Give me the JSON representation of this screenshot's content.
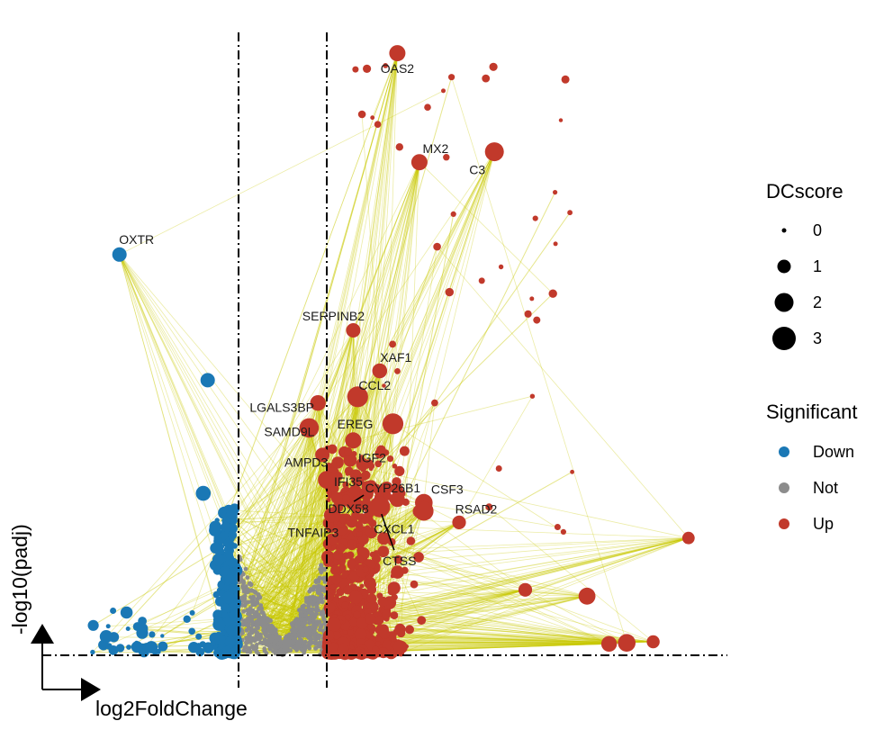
{
  "chart_data": {
    "type": "scatter",
    "subtype": "volcano",
    "xlabel": "log2FoldChange",
    "ylabel": "-log10(padj)",
    "xlim": [
      -6,
      10
    ],
    "ylim": [
      0,
      60
    ],
    "fc_threshold": [
      -1,
      1
    ],
    "padj_threshold": 1.3,
    "colors": {
      "Down": "#1a78b5",
      "Not": "#8c8c8c",
      "Up": "#c1392b",
      "edge": "#c8c800",
      "threshold": "#000000"
    },
    "legend": {
      "size_title": "DCscore",
      "size_values": [
        0,
        1,
        2,
        3
      ],
      "color_title": "Significant",
      "color_values": [
        "Down",
        "Not",
        "Up"
      ]
    },
    "labeled_genes": [
      {
        "gene": "OAS2",
        "x": 2.6,
        "y": 58.0,
        "score": 1.9,
        "group": "Up"
      },
      {
        "gene": "MX2",
        "x": 3.1,
        "y": 47.5,
        "score": 1.9,
        "group": "Up"
      },
      {
        "gene": "C3",
        "x": 4.8,
        "y": 48.5,
        "score": 2.3,
        "group": "Up"
      },
      {
        "gene": "OXTR",
        "x": -3.7,
        "y": 38.6,
        "score": 1.6,
        "group": "Down"
      },
      {
        "gene": "SERPINB2",
        "x": 1.6,
        "y": 31.3,
        "score": 1.6,
        "group": "Up"
      },
      {
        "gene": "XAF1",
        "x": 2.2,
        "y": 27.4,
        "score": 1.7,
        "group": "Up"
      },
      {
        "gene": "CCL2",
        "x": 1.7,
        "y": 24.9,
        "score": 2.6,
        "group": "Up"
      },
      {
        "gene": "LGALS3BP",
        "x": 0.8,
        "y": 24.3,
        "score": 1.8,
        "group": "Up"
      },
      {
        "gene": "SAMD9L",
        "x": 0.6,
        "y": 21.9,
        "score": 2.4,
        "group": "Up"
      },
      {
        "gene": "EREG",
        "x": 2.5,
        "y": 22.3,
        "score": 2.6,
        "group": "Up"
      },
      {
        "gene": "IGF2",
        "x": 1.6,
        "y": 20.7,
        "score": 1.9,
        "group": "Up"
      },
      {
        "gene": "AMPD3",
        "x": 0.9,
        "y": 19.3,
        "score": 1.6,
        "group": "Up"
      },
      {
        "gene": "IFI35",
        "x": 1.0,
        "y": 16.9,
        "score": 2.1,
        "group": "Up"
      },
      {
        "gene": "CYP26B1",
        "x": 2.6,
        "y": 15.0,
        "score": 1.7,
        "group": "Up"
      },
      {
        "gene": "CSF3",
        "x": 3.2,
        "y": 14.7,
        "score": 2.1,
        "group": "Up"
      },
      {
        "gene": "RSAD2",
        "x": 4.0,
        "y": 12.8,
        "score": 1.5,
        "group": "Up"
      },
      {
        "gene": "DDX58",
        "x": 1.9,
        "y": 15.6,
        "score": 1.5,
        "group": "Up"
      },
      {
        "gene": "TNFAIP3",
        "x": 1.1,
        "y": 13.5,
        "score": 1.6,
        "group": "Up"
      },
      {
        "gene": "CXCL1",
        "x": 3.2,
        "y": 13.9,
        "score": 2.4,
        "group": "Up"
      },
      {
        "gene": "CTSS",
        "x": 2.2,
        "y": 14.3,
        "score": 2.6,
        "group": "Up"
      }
    ]
  }
}
